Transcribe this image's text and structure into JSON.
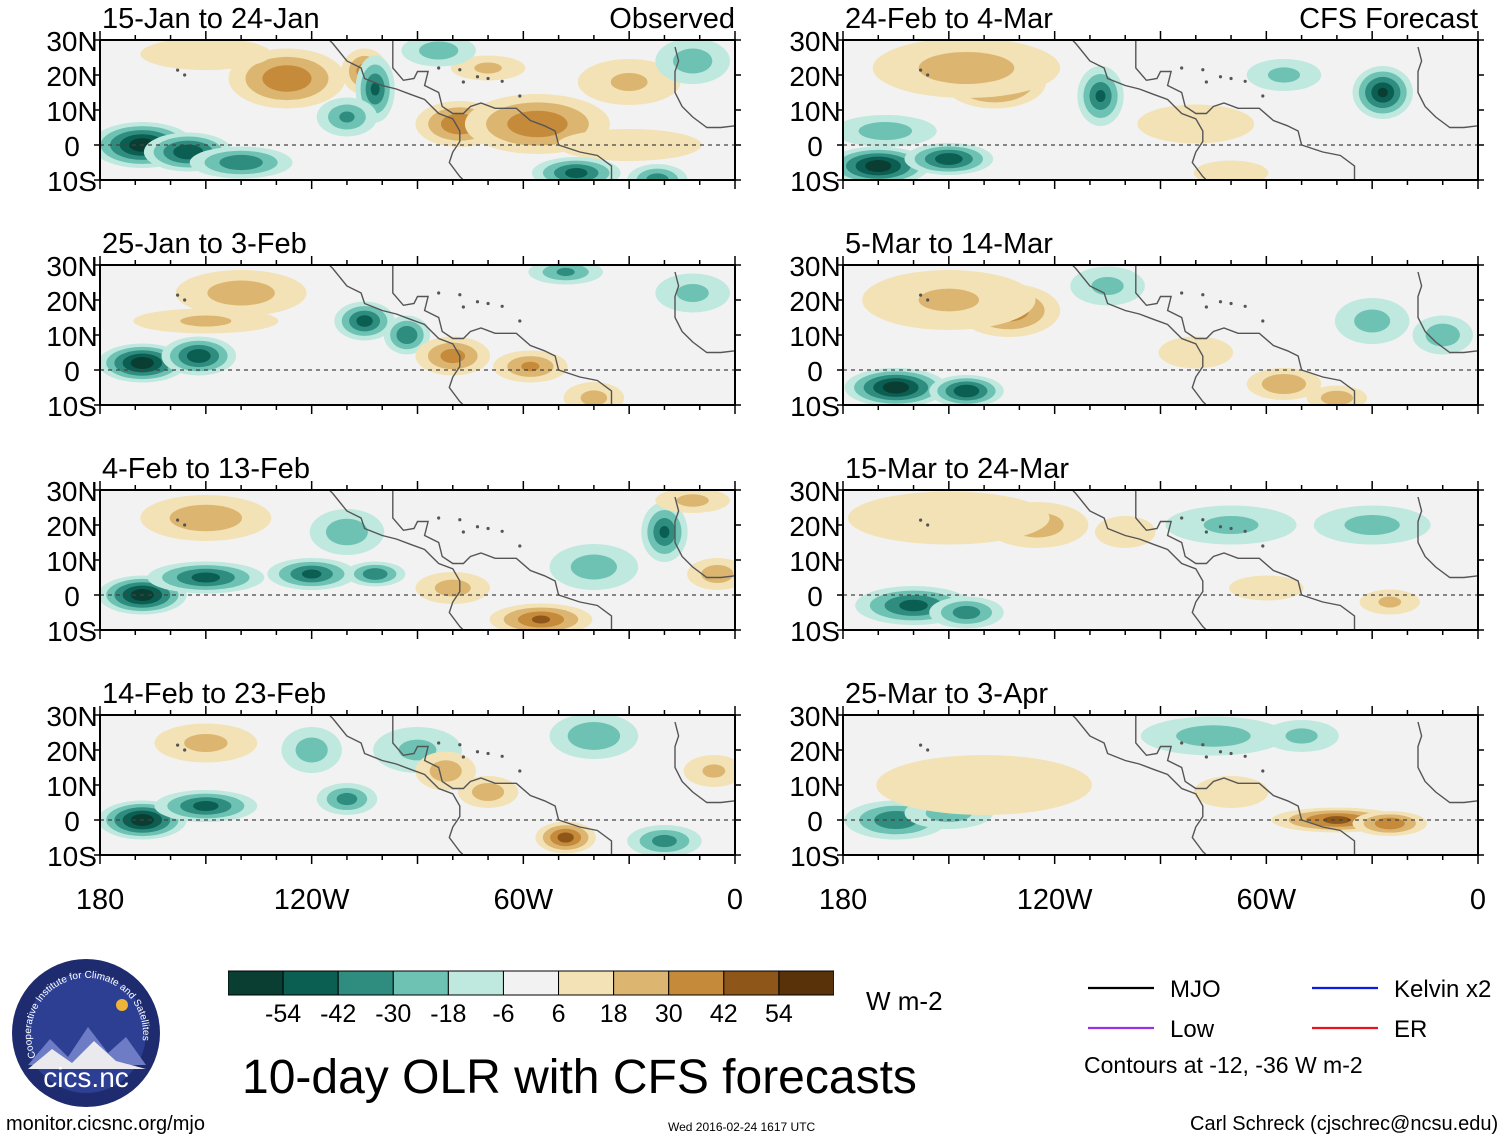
{
  "chart_data": {
    "type": "heatmap",
    "title": "10-day OLR with CFS forecasts",
    "labels": {
      "observed": "Observed",
      "forecast": "CFS Forecast"
    },
    "lat_ticks": [
      "30N",
      "20N",
      "10N",
      "0",
      "10S"
    ],
    "lon_ticks": [
      "180",
      "120W",
      "60W",
      "0"
    ],
    "panels": [
      {
        "period": "15-Jan to 24-Jan",
        "type": "observed",
        "tag": "Observed",
        "blobs": [
          [
            -127,
            19,
            16,
            8,
            40
          ],
          [
            -105,
            21,
            6,
            6,
            34
          ],
          [
            -78,
            6,
            12,
            6,
            40
          ],
          [
            -56,
            6,
            20,
            8,
            40
          ],
          [
            -150,
            26,
            18,
            4,
            15
          ],
          [
            -70,
            22,
            10,
            3,
            18
          ],
          [
            -30,
            18,
            14,
            6,
            18
          ],
          [
            -30,
            0,
            20,
            4,
            6
          ],
          [
            -168,
            0,
            14,
            6,
            -62
          ],
          [
            -155,
            -2,
            12,
            5,
            -52
          ],
          [
            -140,
            -5,
            14,
            4,
            -40
          ],
          [
            -102,
            16,
            5,
            9,
            -42
          ],
          [
            -110,
            8,
            8,
            5,
            -30
          ],
          [
            -84,
            27,
            10,
            4,
            -24
          ],
          [
            -45,
            -8,
            12,
            4,
            -46
          ],
          [
            -22,
            -10,
            8,
            4,
            -36
          ],
          [
            -12,
            24,
            10,
            6,
            -24
          ]
        ]
      },
      {
        "period": "25-Jan to 3-Feb",
        "type": "observed",
        "tag": "",
        "blobs": [
          [
            -168,
            2,
            12,
            5,
            -62
          ],
          [
            -152,
            4,
            10,
            5,
            -50
          ],
          [
            -105,
            14,
            8,
            5,
            -46
          ],
          [
            -93,
            10,
            6,
            5,
            -40
          ],
          [
            -48,
            28,
            10,
            3,
            -30
          ],
          [
            -12,
            22,
            10,
            5,
            -20
          ],
          [
            -140,
            22,
            18,
            6,
            24
          ],
          [
            -80,
            4,
            10,
            5,
            34
          ],
          [
            -58,
            1,
            10,
            4,
            30
          ],
          [
            -40,
            -8,
            8,
            4,
            20
          ],
          [
            -150,
            14,
            20,
            3,
            18
          ]
        ]
      },
      {
        "period": "4-Feb to 13-Feb",
        "type": "observed",
        "tag": "",
        "blobs": [
          [
            -168,
            0,
            12,
            5,
            -62
          ],
          [
            -150,
            5,
            16,
            4,
            -46
          ],
          [
            -120,
            6,
            12,
            4,
            -44
          ],
          [
            -102,
            6,
            8,
            3,
            -38
          ],
          [
            -110,
            18,
            10,
            6,
            -26
          ],
          [
            -20,
            18,
            6,
            8,
            -42
          ],
          [
            -40,
            8,
            12,
            6,
            -24
          ],
          [
            -150,
            22,
            18,
            6,
            26
          ],
          [
            -55,
            -7,
            14,
            4,
            42
          ],
          [
            -80,
            2,
            10,
            4,
            22
          ],
          [
            -5,
            6,
            8,
            4,
            24
          ],
          [
            -12,
            27,
            10,
            3,
            20
          ]
        ]
      },
      {
        "period": "14-Feb to 23-Feb",
        "type": "observed",
        "tag": "",
        "blobs": [
          [
            -168,
            0,
            12,
            5,
            -62
          ],
          [
            -150,
            4,
            14,
            4,
            -46
          ],
          [
            -110,
            6,
            8,
            4,
            -34
          ],
          [
            -120,
            20,
            8,
            6,
            -24
          ],
          [
            -90,
            20,
            12,
            6,
            -20
          ],
          [
            -40,
            24,
            12,
            6,
            -28
          ],
          [
            -20,
            -6,
            10,
            4,
            -34
          ],
          [
            -48,
            -5,
            8,
            4,
            46
          ],
          [
            -82,
            14,
            8,
            5,
            24
          ],
          [
            -150,
            22,
            14,
            5,
            20
          ],
          [
            -70,
            8,
            8,
            4,
            24
          ],
          [
            -6,
            14,
            8,
            4,
            18
          ]
        ]
      },
      {
        "period": "24-Feb to 4-Mar",
        "type": "forecast",
        "tag": "CFS Forecast",
        "blobs": [
          [
            -137,
            18,
            14,
            7,
            48
          ],
          [
            -145,
            22,
            26,
            8,
            24
          ],
          [
            -170,
            -6,
            14,
            5,
            -62
          ],
          [
            -150,
            -4,
            12,
            4,
            -50
          ],
          [
            -107,
            14,
            6,
            8,
            -42
          ],
          [
            -27,
            15,
            8,
            7,
            -54
          ],
          [
            -55,
            20,
            10,
            4,
            -20
          ],
          [
            -168,
            4,
            14,
            4,
            -24
          ],
          [
            -80,
            6,
            16,
            5,
            14
          ],
          [
            -70,
            -8,
            10,
            3,
            10
          ]
        ]
      },
      {
        "period": "5-Mar to 14-Mar",
        "type": "forecast",
        "tag": "",
        "blobs": [
          [
            -133,
            17,
            14,
            7,
            38
          ],
          [
            -150,
            20,
            24,
            8,
            18
          ],
          [
            -165,
            -5,
            14,
            5,
            -62
          ],
          [
            -145,
            -6,
            10,
            4,
            -52
          ],
          [
            -105,
            24,
            10,
            5,
            -20
          ],
          [
            -30,
            14,
            10,
            6,
            -22
          ],
          [
            -10,
            10,
            8,
            5,
            -26
          ],
          [
            -55,
            -4,
            10,
            4,
            28
          ],
          [
            -40,
            -8,
            8,
            3,
            24
          ],
          [
            -80,
            5,
            10,
            4,
            10
          ]
        ]
      },
      {
        "period": "15-Mar to 24-Mar",
        "type": "forecast",
        "tag": "",
        "blobs": [
          [
            -125,
            20,
            14,
            6,
            24
          ],
          [
            -150,
            22,
            28,
            7,
            16
          ],
          [
            -160,
            -3,
            16,
            5,
            -46
          ],
          [
            -145,
            -5,
            10,
            4,
            -36
          ],
          [
            -70,
            20,
            18,
            5,
            -20
          ],
          [
            -30,
            20,
            16,
            5,
            -22
          ],
          [
            -60,
            2,
            10,
            3,
            16
          ],
          [
            -25,
            -2,
            8,
            3,
            18
          ],
          [
            -100,
            18,
            8,
            4,
            8
          ]
        ]
      },
      {
        "period": "25-Mar to 3-Apr",
        "type": "forecast",
        "tag": "",
        "blobs": [
          [
            -165,
            0,
            14,
            5,
            -40
          ],
          [
            -150,
            2,
            12,
            4,
            -24
          ],
          [
            -75,
            24,
            20,
            5,
            -24
          ],
          [
            -50,
            24,
            10,
            4,
            -20
          ],
          [
            -40,
            0,
            18,
            3,
            44
          ],
          [
            -25,
            -1,
            10,
            3,
            38
          ],
          [
            -140,
            10,
            30,
            8,
            12
          ],
          [
            -70,
            8,
            10,
            4,
            8
          ]
        ]
      }
    ],
    "colorbar": {
      "colors": [
        "#0a3e32",
        "#0b5e52",
        "#2e8d7f",
        "#6ec2b3",
        "#bfe8df",
        "#f2f2f2",
        "#f3e2b5",
        "#dcb671",
        "#c58a3a",
        "#8e5619",
        "#5a3209"
      ],
      "labels": [
        "-54",
        "-42",
        "-30",
        "-18",
        "-6",
        "6",
        "18",
        "30",
        "42",
        "54"
      ],
      "thresholds": [
        -54,
        -42,
        -30,
        -18,
        -6,
        6,
        18,
        30,
        42,
        54
      ],
      "unit": "W m-2"
    },
    "legend": [
      {
        "label": "MJO",
        "color": "#000000"
      },
      {
        "label": "Kelvin x2",
        "color": "#0a1be6"
      },
      {
        "label": "Low",
        "color": "#9b30e6"
      },
      {
        "label": "ER",
        "color": "#e8141e"
      }
    ],
    "contour_note": "Contours at -12, -36 W m-2"
  },
  "footer": {
    "url": "monitor.cicsnc.org/mjo",
    "timestamp": "Wed 2016-02-24 1617 UTC",
    "author": "Carl Schreck (cjschrec@ncsu.edu)"
  },
  "logo": {
    "text": "cics.nc",
    "ring_text": "Cooperative Institute for Climate and Satellites"
  }
}
